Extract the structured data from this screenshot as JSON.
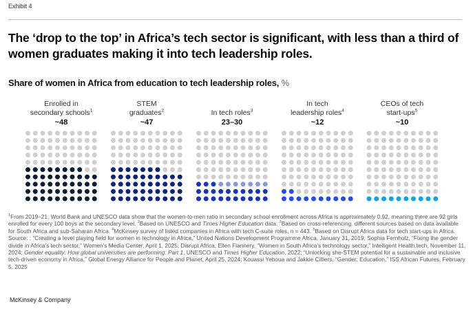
{
  "exhibit_label": "Exhibit 4",
  "title": "The ‘drop to the top’ in Africa’s tech sector is significant, with less than a third of women graduates making it into tech leadership roles.",
  "subtitle": "Share of women in Africa from education to tech leadership roles,",
  "subtitle_unit": "%",
  "chart_data": {
    "type": "waffle",
    "title": "Share of women in Africa from education to tech leadership roles, %",
    "grid": "10x10 dots, filled from bottom-left row by row",
    "unfilled_color": "#cfcfcf",
    "panels": [
      {
        "label_line1": "Enrolled in",
        "label_line2": "secondary schools",
        "footnote": "1",
        "value_label": "~48",
        "value": 48,
        "range_upper": null,
        "color": "#0b1e33",
        "range_color": null
      },
      {
        "label_line1": "STEM",
        "label_line2": "graduates",
        "footnote": "2",
        "value_label": "~47",
        "value": 47,
        "range_upper": null,
        "color": "#0c2480",
        "range_color": null
      },
      {
        "label_line1": "",
        "label_line2": "In tech roles",
        "footnote": "3",
        "value_label": "23–30",
        "value": 23,
        "range_upper": 30,
        "color": "#1535bd",
        "range_color": "#8a97dc"
      },
      {
        "label_line1": "In tech",
        "label_line2": "leadership roles",
        "footnote": "4",
        "value_label": "~12",
        "value": 12,
        "range_upper": null,
        "color": "#1f4ff0",
        "range_color": null
      },
      {
        "label_line1": "CEOs of tech",
        "label_line2": "start-ups",
        "footnote": "5",
        "value_label": "~10",
        "value": 10,
        "range_upper": null,
        "color": "#00a8f0",
        "range_color": null
      }
    ]
  },
  "footnotes": {
    "n1": "1",
    "t1": "From 2019–21, World Bank and UNESCO data show that the women-to-men ratio in secondary school enrollment across Africa is approximately 0.92, meaning there are 92 girls enrolled for every 100 boys at the secondary level. ",
    "n2": "2",
    "t2a": "Based on UNESCO and ",
    "t2i": "Times Higher Education",
    "t2b": " data. ",
    "n3": "3",
    "t3": "Based on cross-referencing. different sources based on data available for South Africa and sub-Saharan Africa. ",
    "n4": "4",
    "t4": "McKinsey survey of listed companies in Africa with tech C-suite roles, n = 443. ",
    "n5": "5",
    "t5": "Based on Disrupt Africa data for tech start-ups in Africa.",
    "source_a": "Source: : “Creating a level playing field for women in technology in Africa,” United Nations Development Programme Africa, January 31, 2019; Sophia Fernholz, “Fixing the gender divide in Africa’s tech sector,” Women’s Media Center, April 1, 2025; Disrupt Africa; Ellen Flannery, “Women in South Africa’s technology sector,” Intelligent Health.tech, November 11, 2024; ",
    "source_i1": "Gender equality: How global universities are performing: Part 1",
    "source_b": ", UNESCO and ",
    "source_i2": "Times Higher Education",
    "source_c": ", 2022; “Unlocking she-STEM potential for a sustainable and inclusive tech-driven economy in Africa,” Global Energy Alliance for People and Planet, April 25, 2024; Kouassi Yeboua and Jakkie Cilliers, “Gender: Education,” ISS African Futures, February 5, 2025"
  },
  "brand": "McKinsey & Company"
}
